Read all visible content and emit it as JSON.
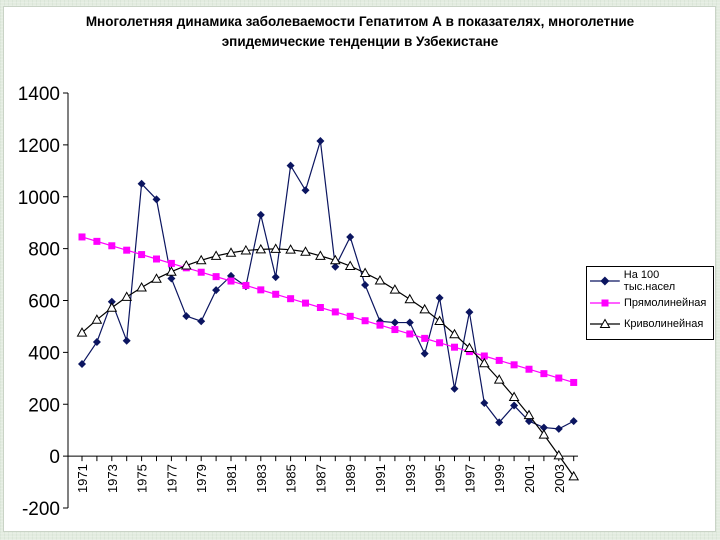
{
  "chart_data": {
    "type": "line",
    "title_line1": "Многолетняя динамика заболеваемости Гепатитом А в показателях, многолетние",
    "title_line2": "эпидемические тенденции в Узбекистане",
    "xlabel": "",
    "ylabel": "",
    "ylim": [
      -200,
      1400
    ],
    "yticks": [
      -200,
      0,
      200,
      400,
      600,
      800,
      1000,
      1200,
      1400
    ],
    "grid": false,
    "legend_position": "right",
    "x": [
      1971,
      1972,
      1973,
      1974,
      1975,
      1976,
      1977,
      1978,
      1979,
      1980,
      1981,
      1982,
      1983,
      1984,
      1985,
      1986,
      1987,
      1988,
      1989,
      1990,
      1991,
      1992,
      1993,
      1994,
      1995,
      1996,
      1997,
      1998,
      1999,
      2000,
      2001,
      2002,
      2003,
      2004
    ],
    "xtick_labels": [
      "1971",
      "1973",
      "1975",
      "1977",
      "1979",
      "1981",
      "1983",
      "1985",
      "1987",
      "1989",
      "1991",
      "1993",
      "1995",
      "1997",
      "1999",
      "2001",
      "2003"
    ],
    "series": [
      {
        "name": "На 100 тыс.насел",
        "color": "#0b1560",
        "marker": "diamond",
        "values": [
          355,
          440,
          595,
          445,
          1050,
          990,
          685,
          540,
          520,
          640,
          695,
          655,
          930,
          690,
          1120,
          1025,
          1215,
          730,
          845,
          660,
          520,
          515,
          515,
          395,
          610,
          260,
          555,
          205,
          130,
          195,
          135,
          110,
          105,
          135
        ]
      },
      {
        "name": "Прямолинейная",
        "color": "#ff00ff",
        "marker": "square",
        "values": [
          845,
          828,
          811,
          794,
          777,
          760,
          743,
          726,
          709,
          692,
          675,
          658,
          641,
          624,
          607,
          590,
          573,
          556,
          539,
          522,
          505,
          488,
          471,
          454,
          437,
          420,
          403,
          386,
          369,
          352,
          335,
          318,
          301,
          284
        ]
      },
      {
        "name": "Криволинейная",
        "color": "#000000",
        "marker": "triangle",
        "values": [
          476,
          526,
          572,
          614,
          650,
          684,
          711,
          735,
          755,
          772,
          784,
          793,
          797,
          799,
          796,
          788,
          772,
          755,
          733,
          706,
          677,
          642,
          605,
          566,
          521,
          470,
          417,
          358,
          295,
          228,
          158,
          83,
          3,
          -78
        ]
      }
    ]
  }
}
